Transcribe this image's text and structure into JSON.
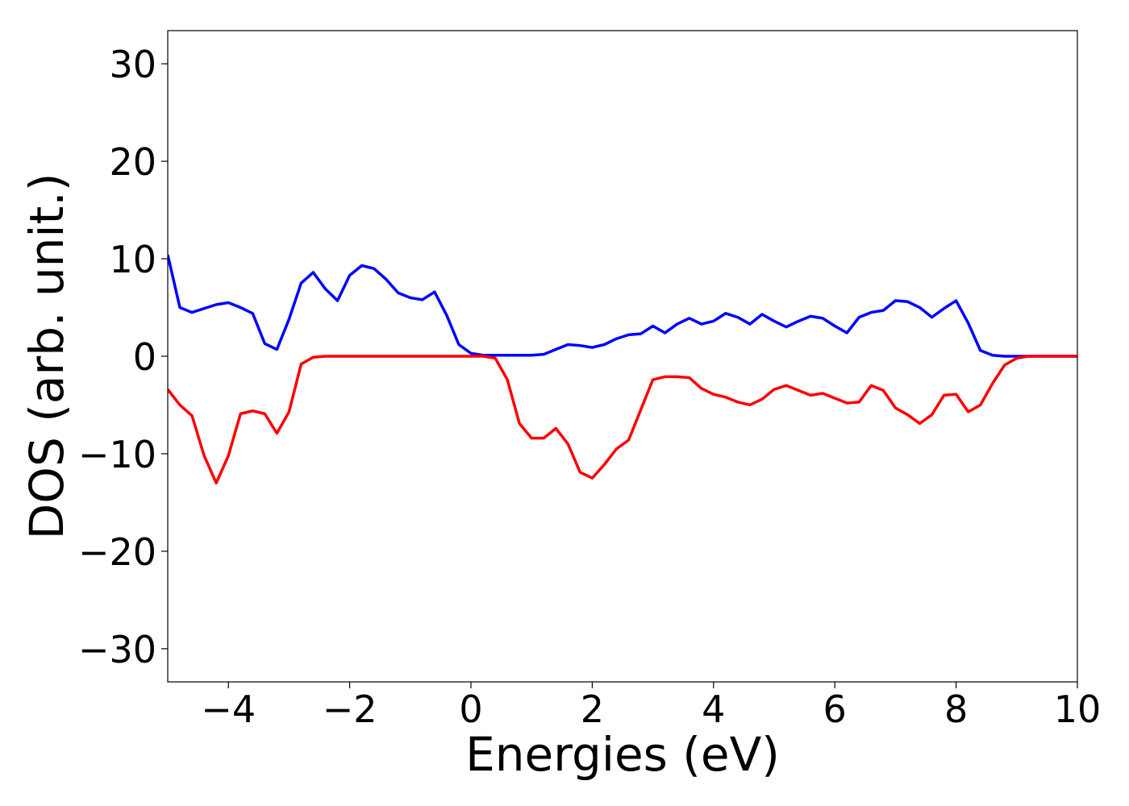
{
  "chart_data": {
    "type": "line",
    "x_label": "Energies (eV)",
    "y_label": "DOS (arb. unit.)",
    "x": [
      -5,
      -4.8,
      -4.6,
      -4.4,
      -4.2,
      -4,
      -3.8,
      -3.6,
      -3.4,
      -3.2,
      -3,
      -2.8,
      -2.6,
      -2.4,
      -2.2,
      -2,
      -1.8,
      -1.6,
      -1.4,
      -1.2,
      -1,
      -0.8,
      -0.6,
      -0.4,
      -0.2,
      0,
      0.2,
      0.4,
      0.6,
      0.8,
      1,
      1.2,
      1.4,
      1.6,
      1.8,
      2,
      2.2,
      2.4,
      2.6,
      2.8,
      3,
      3.2,
      3.4,
      3.6,
      3.8,
      4,
      4.2,
      4.4,
      4.6,
      4.8,
      5,
      5.2,
      5.4,
      5.6,
      5.8,
      6,
      6.2,
      6.4,
      6.6,
      6.8,
      7,
      7.2,
      7.4,
      7.6,
      7.8,
      8,
      8.2,
      8.4,
      8.6,
      8.8,
      9,
      9.2,
      9.4,
      9.6,
      9.8,
      10
    ],
    "series": [
      {
        "color": "#0000ff",
        "values": [
          10.4,
          5.0,
          4.5,
          4.9,
          5.3,
          5.5,
          5.0,
          4.4,
          1.3,
          0.7,
          3.8,
          7.5,
          8.6,
          6.9,
          5.7,
          8.3,
          9.3,
          9.0,
          7.9,
          6.5,
          6.0,
          5.8,
          6.6,
          4.2,
          1.2,
          0.3,
          0.1,
          0.1,
          0.1,
          0.1,
          0.1,
          0.2,
          0.7,
          1.2,
          1.1,
          0.9,
          1.2,
          1.8,
          2.2,
          2.3,
          3.1,
          2.4,
          3.3,
          3.9,
          3.3,
          3.6,
          4.4,
          4.0,
          3.3,
          4.3,
          3.6,
          3.0,
          3.6,
          4.1,
          3.9,
          3.1,
          2.4,
          4.0,
          4.5,
          4.7,
          5.7,
          5.6,
          5.0,
          4.0,
          4.9,
          5.7,
          3.4,
          0.6,
          0.1,
          0,
          0,
          0,
          0,
          0,
          0,
          0
        ]
      },
      {
        "color": "#ff0000",
        "values": [
          -3.4,
          -5.0,
          -6.1,
          -10.2,
          -13.0,
          -10.2,
          -5.9,
          -5.6,
          -5.9,
          -7.9,
          -5.7,
          -0.8,
          -0.1,
          0,
          0,
          0,
          0,
          0,
          0,
          0,
          0,
          0,
          0,
          0,
          0,
          0,
          0,
          -0.2,
          -2.4,
          -6.9,
          -8.4,
          -8.4,
          -7.4,
          -9.0,
          -11.9,
          -12.5,
          -11.1,
          -9.5,
          -8.6,
          -5.5,
          -2.4,
          -2.1,
          -2.1,
          -2.2,
          -3.3,
          -3.9,
          -4.2,
          -4.7,
          -5.0,
          -4.4,
          -3.4,
          -3.0,
          -3.5,
          -4.0,
          -3.8,
          -4.3,
          -4.8,
          -4.7,
          -3.0,
          -3.5,
          -5.3,
          -6.0,
          -6.9,
          -6.0,
          -4.0,
          -3.9,
          -5.7,
          -5.0,
          -2.8,
          -0.9,
          -0.2,
          0,
          0,
          0,
          0,
          0
        ]
      }
    ],
    "xlim": [
      -5,
      10
    ],
    "xticks": [
      {
        "value": -4,
        "label": "−4"
      },
      {
        "value": -2,
        "label": "−2"
      },
      0,
      2,
      4,
      6,
      8,
      10
    ],
    "ylim": [
      -33.4,
      33.4
    ],
    "yticks": [
      {
        "value": -30,
        "label": "−30"
      },
      {
        "value": -20,
        "label": "−20"
      },
      {
        "value": -10,
        "label": "−10"
      },
      0,
      10,
      20,
      30
    ]
  }
}
